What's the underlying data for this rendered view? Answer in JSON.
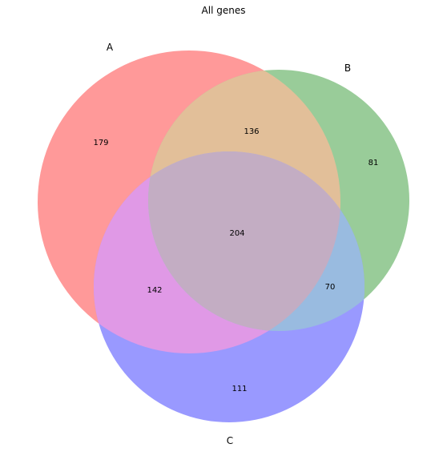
{
  "title": "All genes",
  "sets": [
    {
      "name": "A",
      "color": "#ff9999"
    },
    {
      "name": "B",
      "color": "#99cc99"
    },
    {
      "name": "C",
      "color": "#9999ff"
    }
  ],
  "regions": {
    "A_only": "179",
    "B_only": "81",
    "C_only": "111",
    "AB": "136",
    "AC": "142",
    "BC": "70",
    "ABC": "204"
  },
  "region_colors": {
    "AB": "#e2bf99",
    "AC": "#e099e6",
    "BC": "#99bbe0",
    "ABC": "#c3adc3"
  },
  "chart_data": {
    "type": "venn",
    "title": "All genes",
    "sets": [
      "A",
      "B",
      "C"
    ],
    "values": {
      "A only": 179,
      "B only": 81,
      "C only": 111,
      "A∩B only": 136,
      "A∩C only": 142,
      "B∩C only": 70,
      "A∩B∩C": 204
    }
  }
}
